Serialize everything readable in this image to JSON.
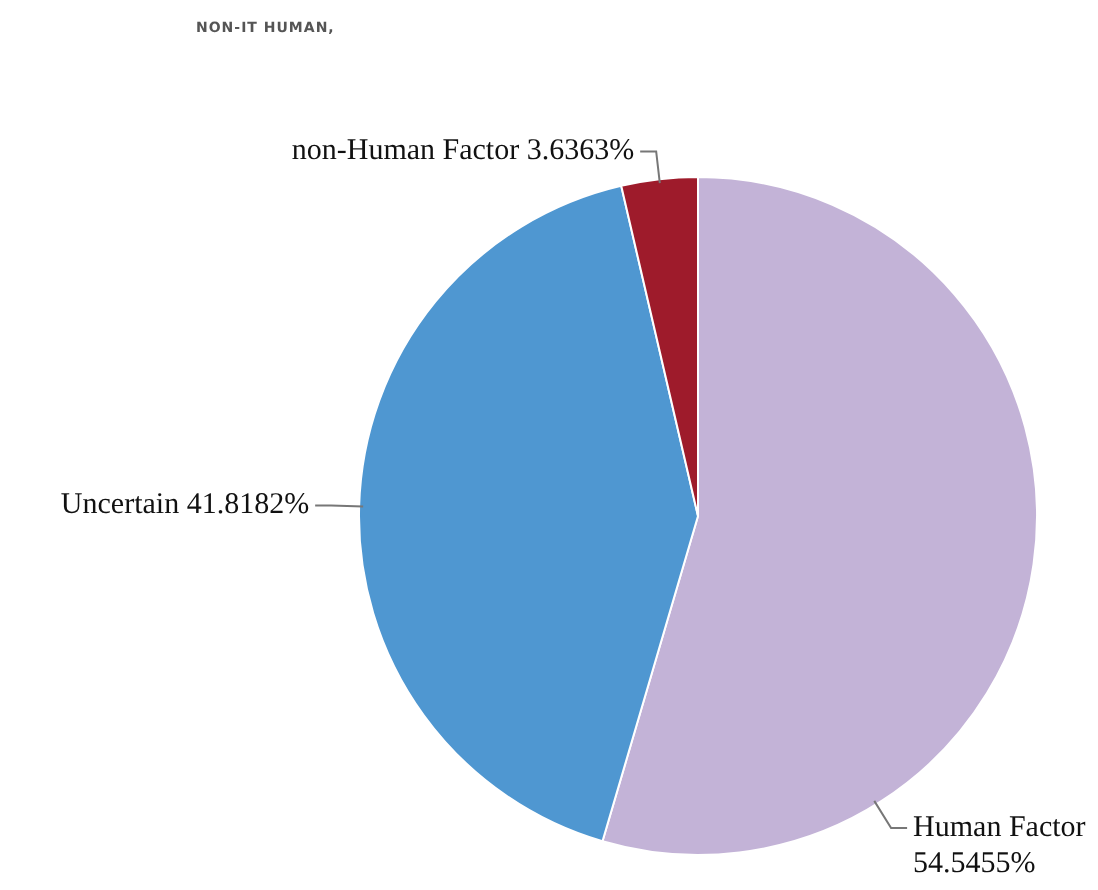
{
  "chart_data": {
    "type": "pie",
    "categories": [
      "Human Factor",
      "Uncertain",
      "non-Human Factor"
    ],
    "values": [
      54.5455,
      41.8182,
      3.6363
    ],
    "value_labels": [
      "54.5455%",
      "41.8182%",
      "3.6363%"
    ],
    "colors": [
      "#c3b3d7",
      "#4f97d1",
      "#9e1b2b"
    ],
    "annotations": [
      "NON-IT HUMAN,"
    ],
    "legend": false
  }
}
